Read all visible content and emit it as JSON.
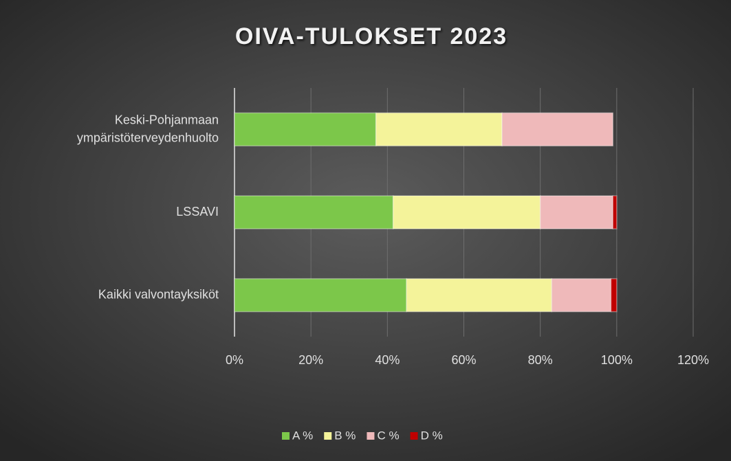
{
  "chart_data": {
    "type": "stacked_barh",
    "title": "OIVA-TULOKSET 2023",
    "categories": [
      "Kaikki valvontayksiköt",
      "LSSAVI",
      "Keski-Pohjanmaan ympäristöterveydenhuolto"
    ],
    "series": [
      {
        "name": "A %",
        "color": "#7cc74a",
        "values": [
          45,
          41.5,
          37
        ]
      },
      {
        "name": "B %",
        "color": "#f4f39a",
        "values": [
          38,
          38.5,
          33
        ]
      },
      {
        "name": "C %",
        "color": "#efb9ba",
        "values": [
          15.5,
          19,
          29
        ]
      },
      {
        "name": "D %",
        "color": "#c00000",
        "values": [
          1.5,
          1,
          0
        ]
      }
    ],
    "xlim": [
      0,
      120
    ],
    "xticks": [
      {
        "value": 0,
        "label": "0%"
      },
      {
        "value": 20,
        "label": "20%"
      },
      {
        "value": 40,
        "label": "40%"
      },
      {
        "value": 60,
        "label": "60%"
      },
      {
        "value": 80,
        "label": "80%"
      },
      {
        "value": 100,
        "label": "100%"
      },
      {
        "value": 120,
        "label": "120%"
      }
    ],
    "grid": true,
    "legend": "bottom"
  }
}
